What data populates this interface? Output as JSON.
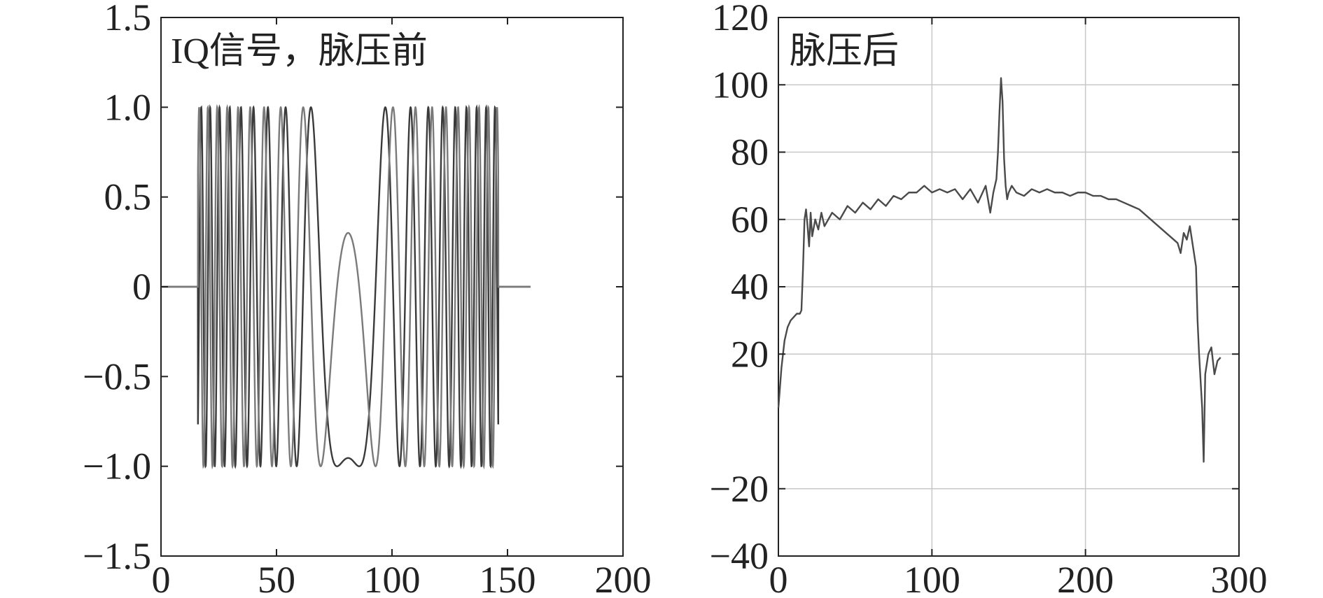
{
  "chart_data": [
    {
      "type": "line",
      "title": "IQ信号，脉压前",
      "xlabel": "",
      "ylabel": "",
      "xlim": [
        0,
        200
      ],
      "ylim": [
        -1.5,
        1.5
      ],
      "xticks": [
        0,
        50,
        100,
        150,
        200
      ],
      "xtick_labels": [
        "0",
        "50",
        "100",
        "150",
        "200"
      ],
      "yticks": [
        1.5,
        1.0,
        0.5,
        0,
        -0.5,
        -1.0,
        -1.5
      ],
      "ytick_labels": [
        "1.5",
        "1.0",
        "0.5",
        "0",
        "−0.5",
        "−1.0",
        "−1.5"
      ],
      "grid": false,
      "line_colors": [
        "#3a3a3a",
        "#7a7a7a"
      ],
      "signal": {
        "type": "LFM chirp (I and Q), zero outside pulse",
        "pulse_start": 16,
        "pulse_end": 146,
        "pulse_center": 81,
        "i_peak_at_center": 0.3,
        "amplitude_range": [
          -1.0,
          1.0
        ],
        "extent": [
          0,
          160
        ]
      }
    },
    {
      "type": "line",
      "title": "脉压后",
      "xlabel": "",
      "ylabel": "",
      "xlim": [
        0,
        300
      ],
      "ylim": [
        -40,
        120
      ],
      "xticks": [
        0,
        100,
        200,
        300
      ],
      "xtick_labels": [
        "0",
        "100",
        "200",
        "300"
      ],
      "yticks": [
        120,
        100,
        80,
        60,
        40,
        20,
        -20,
        -40
      ],
      "ytick_labels": [
        "120",
        "100",
        "80",
        "60",
        "40",
        "20",
        "−20",
        "−40"
      ],
      "grid": true,
      "line_color": "#4a4a4a",
      "series": [
        {
          "x": [
            0,
            2,
            4,
            6,
            8,
            10,
            12,
            14,
            15,
            16,
            17,
            18,
            19,
            20,
            21,
            22,
            24,
            26,
            28,
            30,
            35,
            40,
            45,
            50,
            55,
            60,
            65,
            70,
            75,
            80,
            85,
            90,
            95,
            100,
            105,
            110,
            115,
            120,
            125,
            130,
            135,
            138,
            140,
            142,
            143,
            144,
            145,
            146,
            147,
            148,
            149,
            150,
            152,
            155,
            160,
            165,
            170,
            175,
            180,
            185,
            190,
            195,
            200,
            205,
            210,
            215,
            220,
            225,
            230,
            235,
            240,
            245,
            250,
            255,
            260,
            262,
            264,
            266,
            268,
            270,
            272,
            273,
            274,
            275,
            276,
            277,
            278,
            280,
            282,
            284,
            286,
            288
          ],
          "y": [
            4,
            16,
            24,
            28,
            30,
            31,
            32,
            32,
            33,
            45,
            60,
            63,
            58,
            52,
            62,
            55,
            60,
            57,
            62,
            58,
            62,
            60,
            64,
            62,
            65,
            63,
            66,
            64,
            67,
            66,
            68,
            68,
            70,
            68,
            69,
            68,
            69,
            66,
            69,
            65,
            70,
            62,
            68,
            72,
            80,
            92,
            102,
            95,
            78,
            70,
            66,
            68,
            70,
            68,
            67,
            69,
            68,
            69,
            68,
            68,
            67,
            68,
            68,
            67,
            67,
            66,
            66,
            65,
            64,
            63,
            61,
            59,
            57,
            55,
            53,
            50,
            56,
            54,
            58,
            52,
            46,
            30,
            20,
            12,
            4,
            -12,
            14,
            20,
            22,
            14,
            18,
            19
          ]
        }
      ]
    }
  ]
}
